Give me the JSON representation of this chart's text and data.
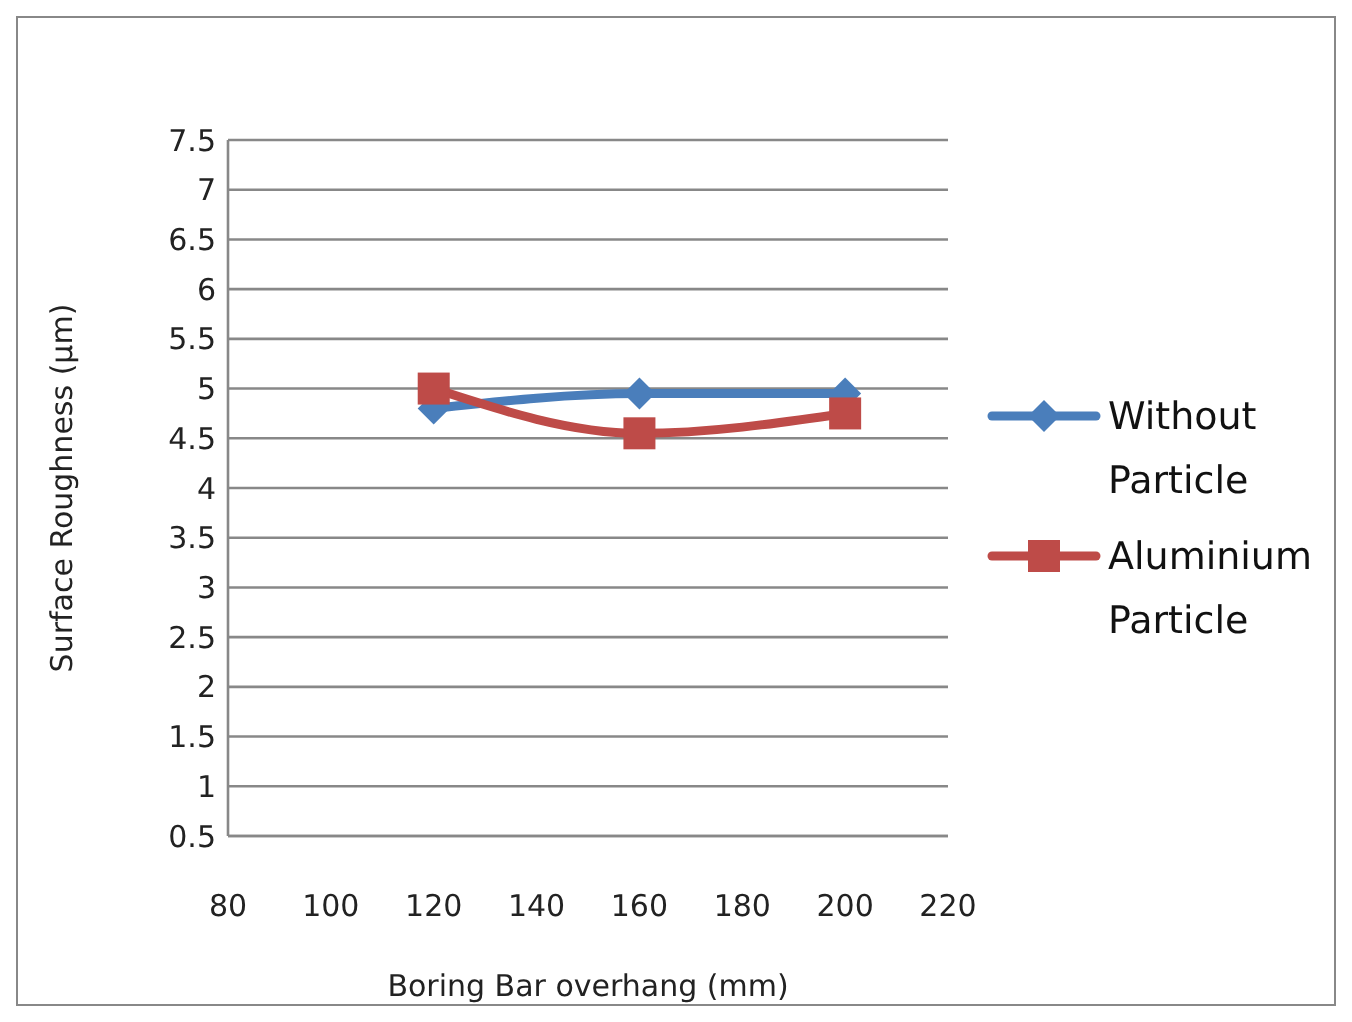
{
  "chart_data": {
    "type": "line",
    "xlabel": "Boring Bar overhang (mm)",
    "ylabel": "Surface Roughness (µm)",
    "x": [
      120,
      160,
      200
    ],
    "series": [
      {
        "name": "Without Particle",
        "color": "#4a7ebb",
        "values": [
          4.8,
          4.95,
          4.95
        ],
        "marker": "diamond"
      },
      {
        "name": "Aluminium Particle",
        "color": "#be4b48",
        "values": [
          5.0,
          4.55,
          4.75
        ],
        "marker": "square"
      }
    ],
    "xlim": [
      80,
      220
    ],
    "xticks": [
      80,
      100,
      120,
      140,
      160,
      180,
      200,
      220
    ],
    "ylim": [
      0.5,
      7.5
    ],
    "yticks": [
      0.5,
      1,
      1.5,
      2,
      2.5,
      3,
      3.5,
      4,
      4.5,
      5,
      5.5,
      6,
      6.5,
      7,
      7.5
    ],
    "grid": "y",
    "legend": "right",
    "line_style": "solid"
  }
}
